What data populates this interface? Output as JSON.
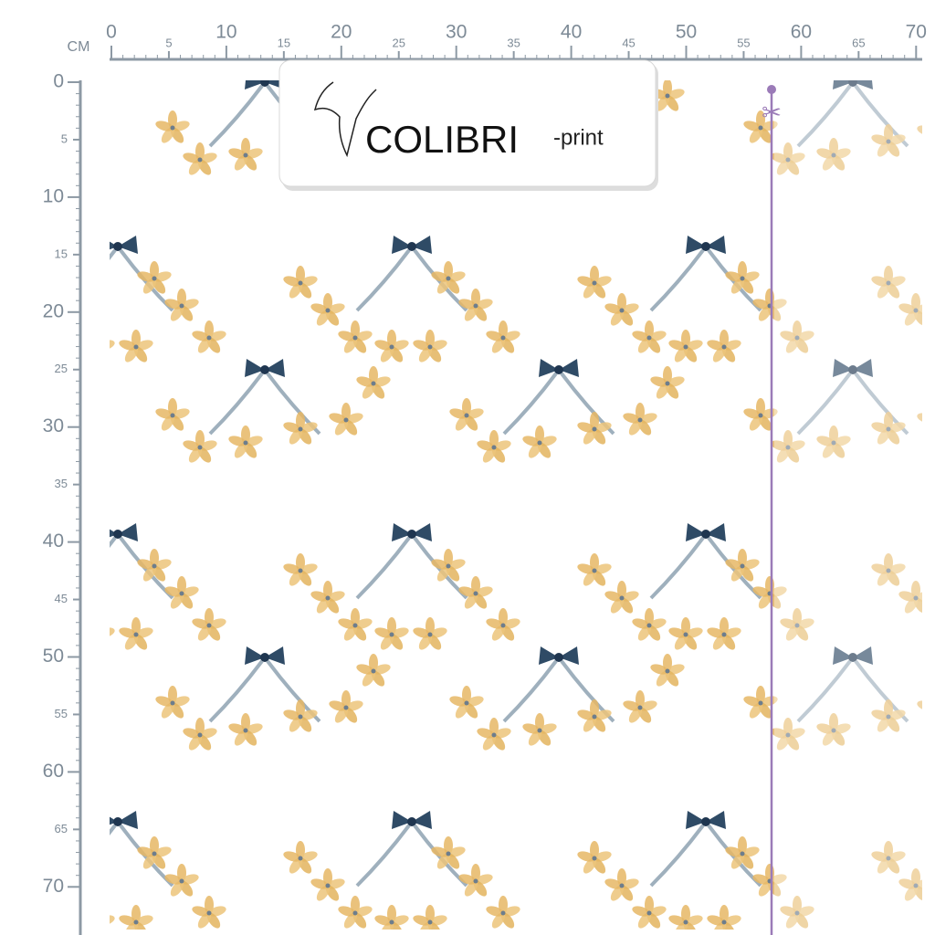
{
  "ruler": {
    "unit": "CM",
    "top_labels": [
      0,
      5,
      10,
      15,
      20,
      25,
      30,
      35,
      40,
      45,
      50,
      55,
      60,
      65,
      70
    ],
    "left_labels": [
      0,
      5,
      10,
      15,
      20,
      25,
      30,
      35,
      40,
      45,
      50,
      55,
      60,
      65,
      70
    ]
  },
  "logo": {
    "name": "COLIBRI",
    "suffix": "-print"
  }
}
